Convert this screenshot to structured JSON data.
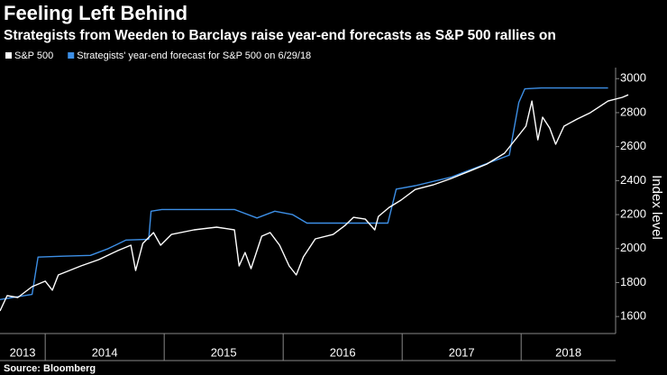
{
  "chart_data": {
    "type": "line",
    "title": "Feeling Left Behind",
    "subtitle": "Strategists from Weeden to Barclays raise year-end forecasts as S&P 500 rallies on",
    "y_label": "Index level",
    "source": "Source: Bloomberg",
    "xlim": [
      2013.62,
      2018.9
    ],
    "xticks": [
      2013,
      2014,
      2015,
      2016,
      2017,
      2018
    ],
    "ylim": [
      1500,
      3065
    ],
    "yticks": [
      1600,
      1800,
      2000,
      2200,
      2400,
      2600,
      2800,
      3000
    ],
    "grid": false,
    "series": [
      {
        "name": "S&P 500",
        "color": "#ffffff",
        "x": [
          2013.62,
          2013.68,
          2013.77,
          2013.89,
          2014.0,
          2014.06,
          2014.11,
          2014.3,
          2014.45,
          2014.61,
          2014.72,
          2014.76,
          2014.82,
          2014.91,
          2014.97,
          2015.06,
          2015.25,
          2015.44,
          2015.59,
          2015.63,
          2015.68,
          2015.73,
          2015.82,
          2015.89,
          2015.97,
          2016.05,
          2016.11,
          2016.17,
          2016.27,
          2016.42,
          2016.52,
          2016.59,
          2016.69,
          2016.77,
          2016.8,
          2016.89,
          2016.99,
          2017.11,
          2017.26,
          2017.41,
          2017.56,
          2017.71,
          2017.86,
          2017.98,
          2018.04,
          2018.09,
          2018.14,
          2018.18,
          2018.24,
          2018.29,
          2018.36,
          2018.47,
          2018.58,
          2018.66,
          2018.73,
          2018.85,
          2018.9
        ],
        "values": [
          1633,
          1723,
          1712,
          1776,
          1808,
          1755,
          1845,
          1898,
          1935,
          1988,
          2020,
          1871,
          2030,
          2094,
          2020,
          2083,
          2110,
          2126,
          2110,
          1898,
          1977,
          1882,
          2073,
          2094,
          2020,
          1898,
          1845,
          1951,
          2057,
          2083,
          2136,
          2184,
          2173,
          2110,
          2189,
          2242,
          2285,
          2348,
          2375,
          2412,
          2454,
          2497,
          2561,
          2667,
          2720,
          2868,
          2640,
          2773,
          2709,
          2614,
          2720,
          2762,
          2799,
          2836,
          2868,
          2890,
          2905
        ]
      },
      {
        "name": "Strategists' year-end forecast for S&P 500 on 6/29/18",
        "color": "#3d8fe6",
        "x": [
          2013.62,
          2013.89,
          2013.94,
          2014.15,
          2014.38,
          2014.53,
          2014.68,
          2014.87,
          2014.89,
          2014.98,
          2015.59,
          2015.78,
          2015.93,
          2016.08,
          2016.2,
          2016.88,
          2016.95,
          2017.11,
          2017.41,
          2017.71,
          2017.9,
          2017.98,
          2018.03,
          2018.17,
          2018.73
        ],
        "values": [
          1700,
          1730,
          1950,
          1955,
          1960,
          2000,
          2050,
          2055,
          2220,
          2230,
          2230,
          2180,
          2220,
          2200,
          2150,
          2150,
          2350,
          2370,
          2420,
          2500,
          2550,
          2860,
          2940,
          2945,
          2945
        ]
      }
    ]
  }
}
